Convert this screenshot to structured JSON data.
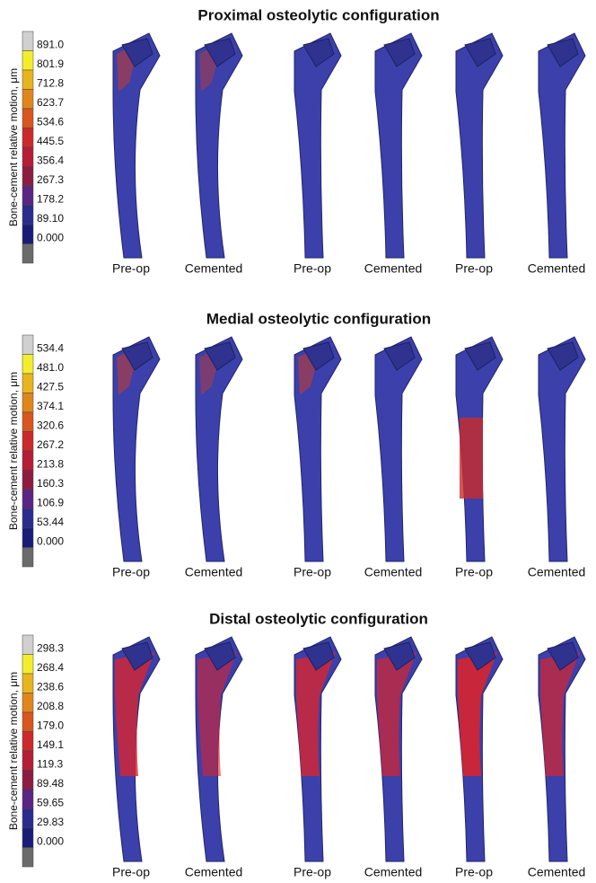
{
  "panels": [
    {
      "title": "Proximal osteolytic configuration",
      "scale_label": "Bone-cement relative motion, μm",
      "scale_ticks": [
        "891.0",
        "801.9",
        "712.8",
        "623.7",
        "534.6",
        "445.5",
        "356.4",
        "267.3",
        "178.2",
        "89.10",
        "0.000"
      ],
      "captions": [
        "Pre-op",
        "Cemented",
        "Pre-op",
        "Cemented",
        "Pre-op",
        "Cemented"
      ]
    },
    {
      "title": "Medial osteolytic configuration",
      "scale_label": "Bone-cement relative motion, μm",
      "scale_ticks": [
        "534.4",
        "481.0",
        "427.5",
        "374.1",
        "320.6",
        "267.2",
        "213.8",
        "160.3",
        "106.9",
        "53.44",
        "0.000"
      ],
      "captions": [
        "Pre-op",
        "Cemented",
        "Pre-op",
        "Cemented",
        "Pre-op",
        "Cemented"
      ]
    },
    {
      "title": "Distal osteolytic configuration",
      "scale_label": "Bone-cement relative motion, μm",
      "scale_ticks": [
        "298.3",
        "268.4",
        "238.6",
        "208.8",
        "179.0",
        "149.1",
        "119.3",
        "89.48",
        "59.65",
        "29.83",
        "0.000"
      ],
      "captions": [
        "Pre-op",
        "Cemented",
        "Pre-op",
        "Cemented",
        "Pre-op",
        "Cemented"
      ]
    }
  ]
}
